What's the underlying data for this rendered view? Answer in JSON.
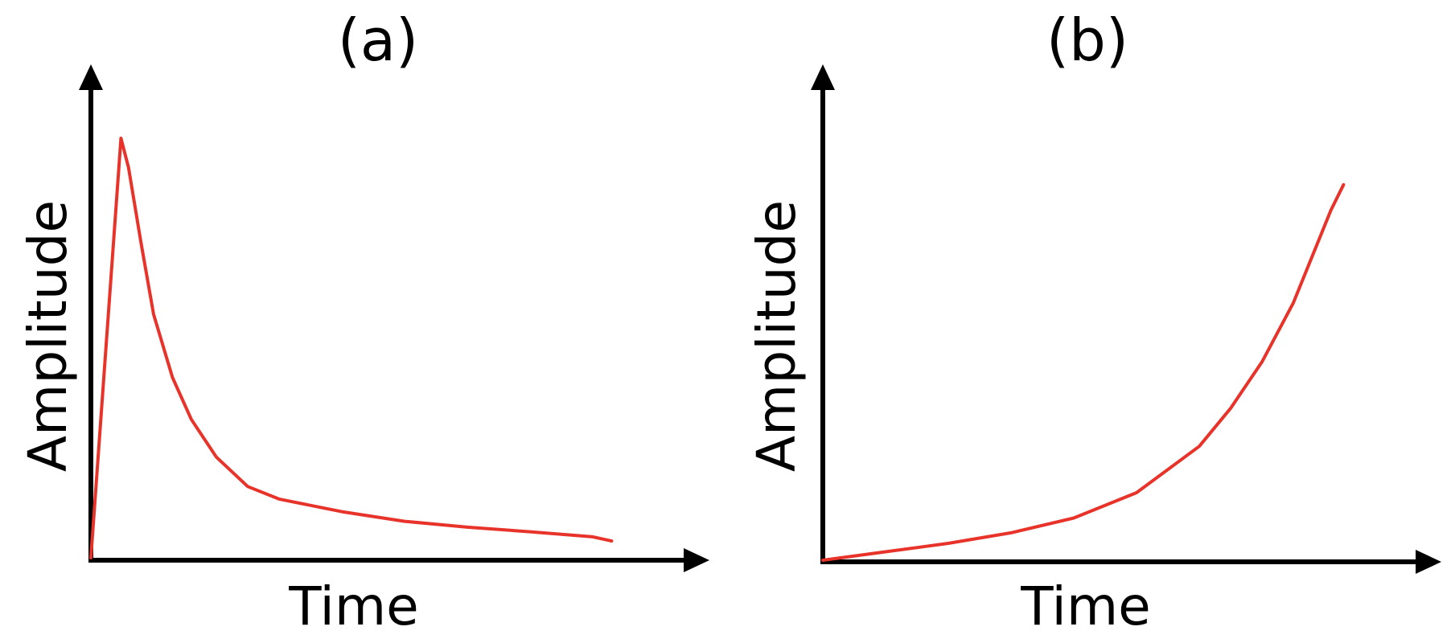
{
  "chart_data": [
    {
      "type": "line",
      "title": "(a)",
      "xlabel": "Time",
      "ylabel": "Amplitude",
      "xlim": [
        0,
        1
      ],
      "ylim": [
        0,
        1
      ],
      "grid": false,
      "series": [
        {
          "color": "#e8332a",
          "x": [
            0.0,
            0.048,
            0.06,
            0.08,
            0.1,
            0.13,
            0.16,
            0.2,
            0.25,
            0.3,
            0.4,
            0.5,
            0.6,
            0.7,
            0.8,
            0.83
          ],
          "y": [
            0.0,
            1.0,
            0.93,
            0.75,
            0.58,
            0.43,
            0.33,
            0.24,
            0.17,
            0.14,
            0.11,
            0.087,
            0.073,
            0.062,
            0.05,
            0.04
          ]
        }
      ]
    },
    {
      "type": "line",
      "title": "(b)",
      "xlabel": "Time",
      "ylabel": "Amplitude",
      "xlim": [
        0,
        1
      ],
      "ylim": [
        0,
        1
      ],
      "grid": false,
      "series": [
        {
          "color": "#e8332a",
          "x": [
            0.0,
            0.1,
            0.2,
            0.3,
            0.4,
            0.5,
            0.6,
            0.65,
            0.7,
            0.75,
            0.78,
            0.81,
            0.83
          ],
          "y": [
            0.0,
            0.02,
            0.04,
            0.065,
            0.1,
            0.16,
            0.27,
            0.36,
            0.47,
            0.61,
            0.72,
            0.83,
            0.89
          ]
        }
      ]
    }
  ]
}
